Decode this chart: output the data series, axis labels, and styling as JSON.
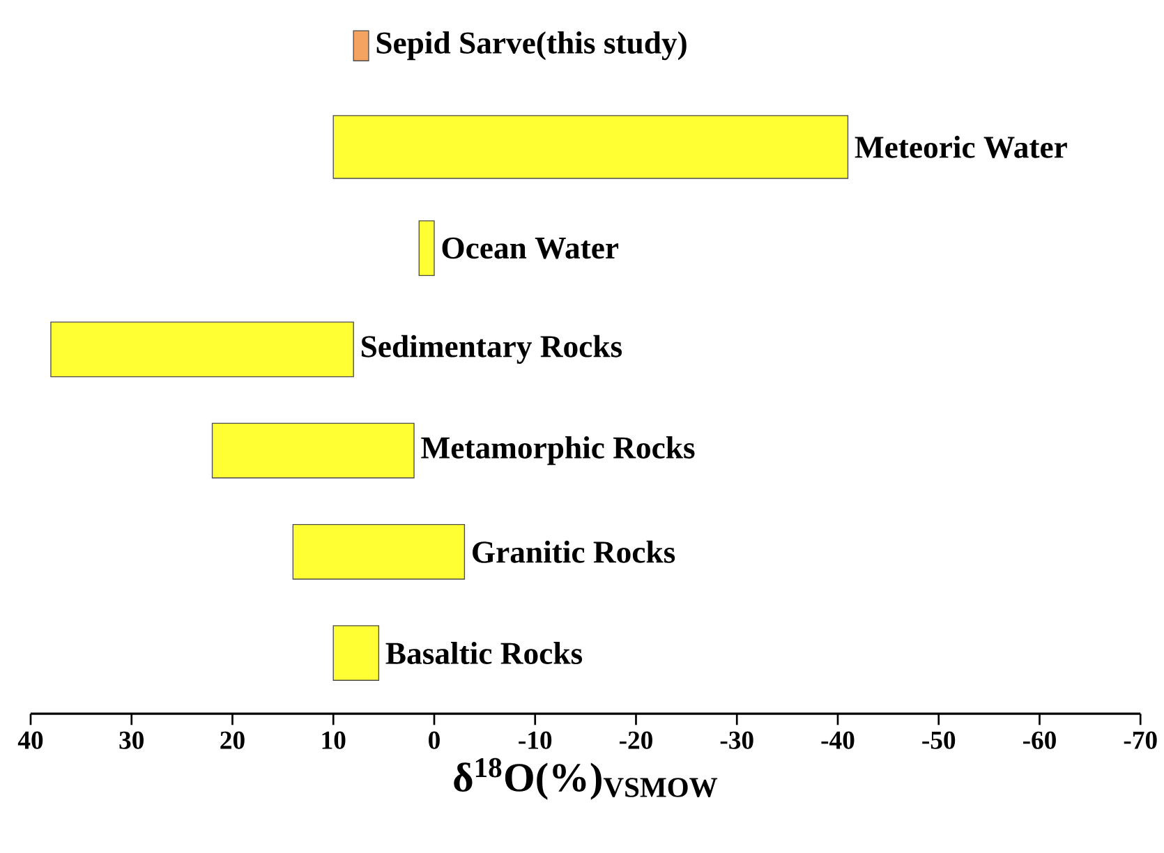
{
  "chart_data": {
    "type": "bar",
    "orientation": "horizontal",
    "categories": [
      "Sepid Sarve(this study)",
      "Meteoric Water",
      "Ocean Water",
      "Sedimentary Rocks",
      "Metamorphic Rocks",
      "Granitic Rocks",
      "Basaltic Rocks"
    ],
    "base": [
      6.5,
      -41,
      0,
      8,
      2,
      -3,
      5.5
    ],
    "values": [
      1.5,
      51,
      1.5,
      30,
      20,
      17,
      4.5
    ],
    "colors": [
      "#f4a460",
      "#ffff33",
      "#ffff33",
      "#ffff33",
      "#ffff33",
      "#ffff33",
      "#ffff33"
    ],
    "xlabel": "δ$^{18}$O(%)$_{VSMOW}$",
    "xlim": [
      40,
      -70
    ],
    "xticks": [
      40,
      30,
      20,
      10,
      0,
      -10,
      -20,
      -30,
      -40,
      -50,
      -60,
      -70
    ],
    "tick_labels": "x"
  }
}
